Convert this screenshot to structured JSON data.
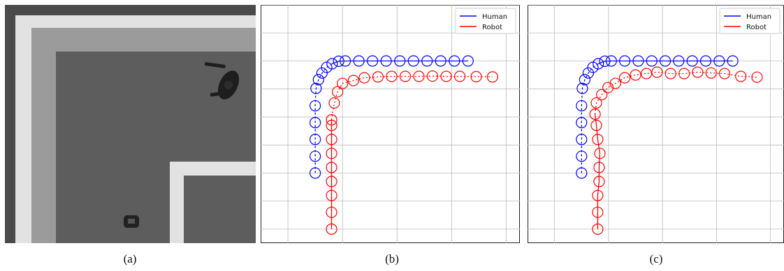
{
  "captions": [
    "(a)",
    "(b)",
    "(c)"
  ],
  "scene": {
    "colors": {
      "floor": "#5d5d5d",
      "outer": "#4a4a4a",
      "wall_light": "#e2e2e2",
      "wall_mid": "#9b9b9b",
      "person": "#1e1e1e",
      "robot": "#222222"
    }
  },
  "chart_data": [
    {
      "type": "line",
      "xlim": [
        -1,
        8.5
      ],
      "ylim": [
        -4.5,
        4
      ],
      "grid": true,
      "legend_placement": "top-right",
      "marker": "circle",
      "series": [
        {
          "name": "Human",
          "color": "#0000ff",
          "linestyle": "dashed-then-solid",
          "x": [
            1,
            1,
            1,
            1,
            1,
            1.03,
            1.12,
            1.25,
            1.42,
            1.62,
            1.86,
            2.1,
            2.6,
            3.1,
            3.6,
            4.1,
            4.6,
            5.1,
            5.6,
            6.1,
            6.6
          ],
          "y": [
            -2,
            -1.4,
            -0.8,
            -0.2,
            0.4,
            1.02,
            1.33,
            1.57,
            1.77,
            1.9,
            1.99,
            2,
            2,
            2,
            2,
            2,
            2,
            2,
            2,
            2,
            2
          ]
        },
        {
          "name": "Robot",
          "color": "#ff0000",
          "linestyle": "solid-then-dotted",
          "x": [
            1.6,
            1.6,
            1.6,
            1.6,
            1.6,
            1.6,
            1.6,
            1.6,
            1.6,
            1.7,
            1.82,
            2.0,
            2.4,
            2.8,
            3.3,
            3.8,
            4.3,
            4.8,
            5.3,
            5.8,
            6.3,
            6.9,
            7.5
          ],
          "y": [
            -4,
            -3.4,
            -2.8,
            -2.3,
            -1.8,
            -1.3,
            -0.8,
            -0.3,
            -0.1,
            0.5,
            0.9,
            1.2,
            1.3,
            1.4,
            1.43,
            1.45,
            1.45,
            1.45,
            1.46,
            1.45,
            1.45,
            1.44,
            1.43
          ]
        }
      ]
    },
    {
      "type": "line",
      "xlim": [
        -1,
        8.5
      ],
      "ylim": [
        -4.5,
        4
      ],
      "grid": true,
      "legend_placement": "top-right",
      "marker": "circle",
      "series": [
        {
          "name": "Human",
          "color": "#0000ff",
          "linestyle": "dashed-then-solid",
          "x": [
            1,
            1,
            1,
            1,
            1,
            1.03,
            1.12,
            1.25,
            1.42,
            1.62,
            1.86,
            2.1,
            2.6,
            3.1,
            3.6,
            4.1,
            4.6,
            5.1,
            5.6,
            6.1,
            6.6
          ],
          "y": [
            -2,
            -1.4,
            -0.8,
            -0.2,
            0.4,
            1.02,
            1.33,
            1.57,
            1.77,
            1.9,
            1.99,
            2,
            2,
            2,
            2,
            2,
            2,
            2,
            2,
            2,
            2
          ]
        },
        {
          "name": "Robot",
          "color": "#ff0000",
          "linestyle": "solid-then-dotted",
          "x": [
            1.6,
            1.6,
            1.6,
            1.65,
            1.65,
            1.68,
            1.6,
            1.55,
            1.5,
            1.55,
            1.75,
            1.98,
            2.25,
            2.6,
            3.0,
            3.4,
            3.8,
            4.3,
            4.8,
            5.3,
            5.8,
            6.3,
            6.9,
            7.5
          ],
          "y": [
            -4,
            -3.4,
            -2.8,
            -2.3,
            -1.8,
            -1.3,
            -0.8,
            -0.3,
            0.1,
            0.5,
            0.8,
            1.05,
            1.2,
            1.4,
            1.5,
            1.55,
            1.6,
            1.55,
            1.55,
            1.6,
            1.57,
            1.55,
            1.45,
            1.42
          ]
        }
      ]
    }
  ]
}
